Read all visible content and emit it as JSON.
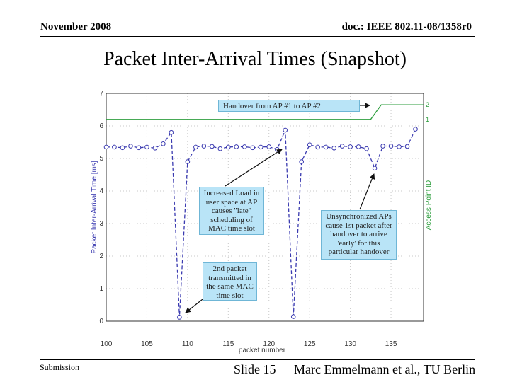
{
  "header": {
    "date": "November 2008",
    "doc_id": "doc.: IEEE 802.11-08/1358r0"
  },
  "title": "Packet Inter-Arrival Times (Snapshot)",
  "footer": {
    "left": "Submission",
    "slide": "Slide 15",
    "author": "Marc Emmelmann et al., TU Berlin"
  },
  "colors": {
    "series_inter_arrival": "#3a3ab0",
    "series_ap_id": "#2e9e3e",
    "callout_fill": "#b9e4f7"
  },
  "chart_data": {
    "type": "line",
    "xlabel": "packet number",
    "ylabel": "Packet Inter-Arrival Time [ms]",
    "y2label": "Access Point ID",
    "xlim": [
      100,
      139
    ],
    "ylim": [
      0,
      7
    ],
    "xticks": [
      100,
      105,
      110,
      115,
      120,
      125,
      130,
      135
    ],
    "yticks": [
      0,
      1,
      2,
      3,
      4,
      5,
      6,
      7
    ],
    "y2ticks": [
      "1",
      "2"
    ],
    "grid": true,
    "series": [
      {
        "x": [
          100,
          101,
          102,
          103,
          104,
          105,
          106,
          107,
          108,
          109,
          110,
          111,
          112,
          113,
          114,
          115,
          116,
          117,
          118,
          119,
          120,
          121,
          122,
          123,
          124,
          125,
          126,
          127,
          128,
          129,
          130,
          131,
          132,
          133,
          134,
          135,
          136,
          137,
          138
        ],
        "y": [
          5.35,
          5.35,
          5.33,
          5.38,
          5.33,
          5.35,
          5.32,
          5.45,
          5.8,
          0.12,
          4.9,
          5.35,
          5.38,
          5.37,
          5.3,
          5.35,
          5.36,
          5.36,
          5.33,
          5.35,
          5.36,
          5.28,
          5.87,
          0.14,
          4.9,
          5.42,
          5.35,
          5.35,
          5.32,
          5.38,
          5.36,
          5.36,
          5.3,
          4.7,
          5.38,
          5.38,
          5.36,
          5.37,
          5.9
        ]
      },
      {
        "axis": "right",
        "x": [
          100,
          132.5,
          133.8,
          139
        ],
        "y": [
          1,
          1,
          2,
          2
        ]
      }
    ],
    "annotations": [
      {
        "id": "handover",
        "text": "Handover from AP #1 to AP #2"
      },
      {
        "id": "increased-load",
        "text": "Increased Load in user space at AP causes \"late\" scheduling of MAC time slot"
      },
      {
        "id": "unsynchronized",
        "text": "Unsynchronized APs cause 1st packet after handover to arrive 'early' for this particular handover"
      },
      {
        "id": "second-packet",
        "text": "2nd packet transmitted in the same MAC time slot"
      }
    ]
  }
}
